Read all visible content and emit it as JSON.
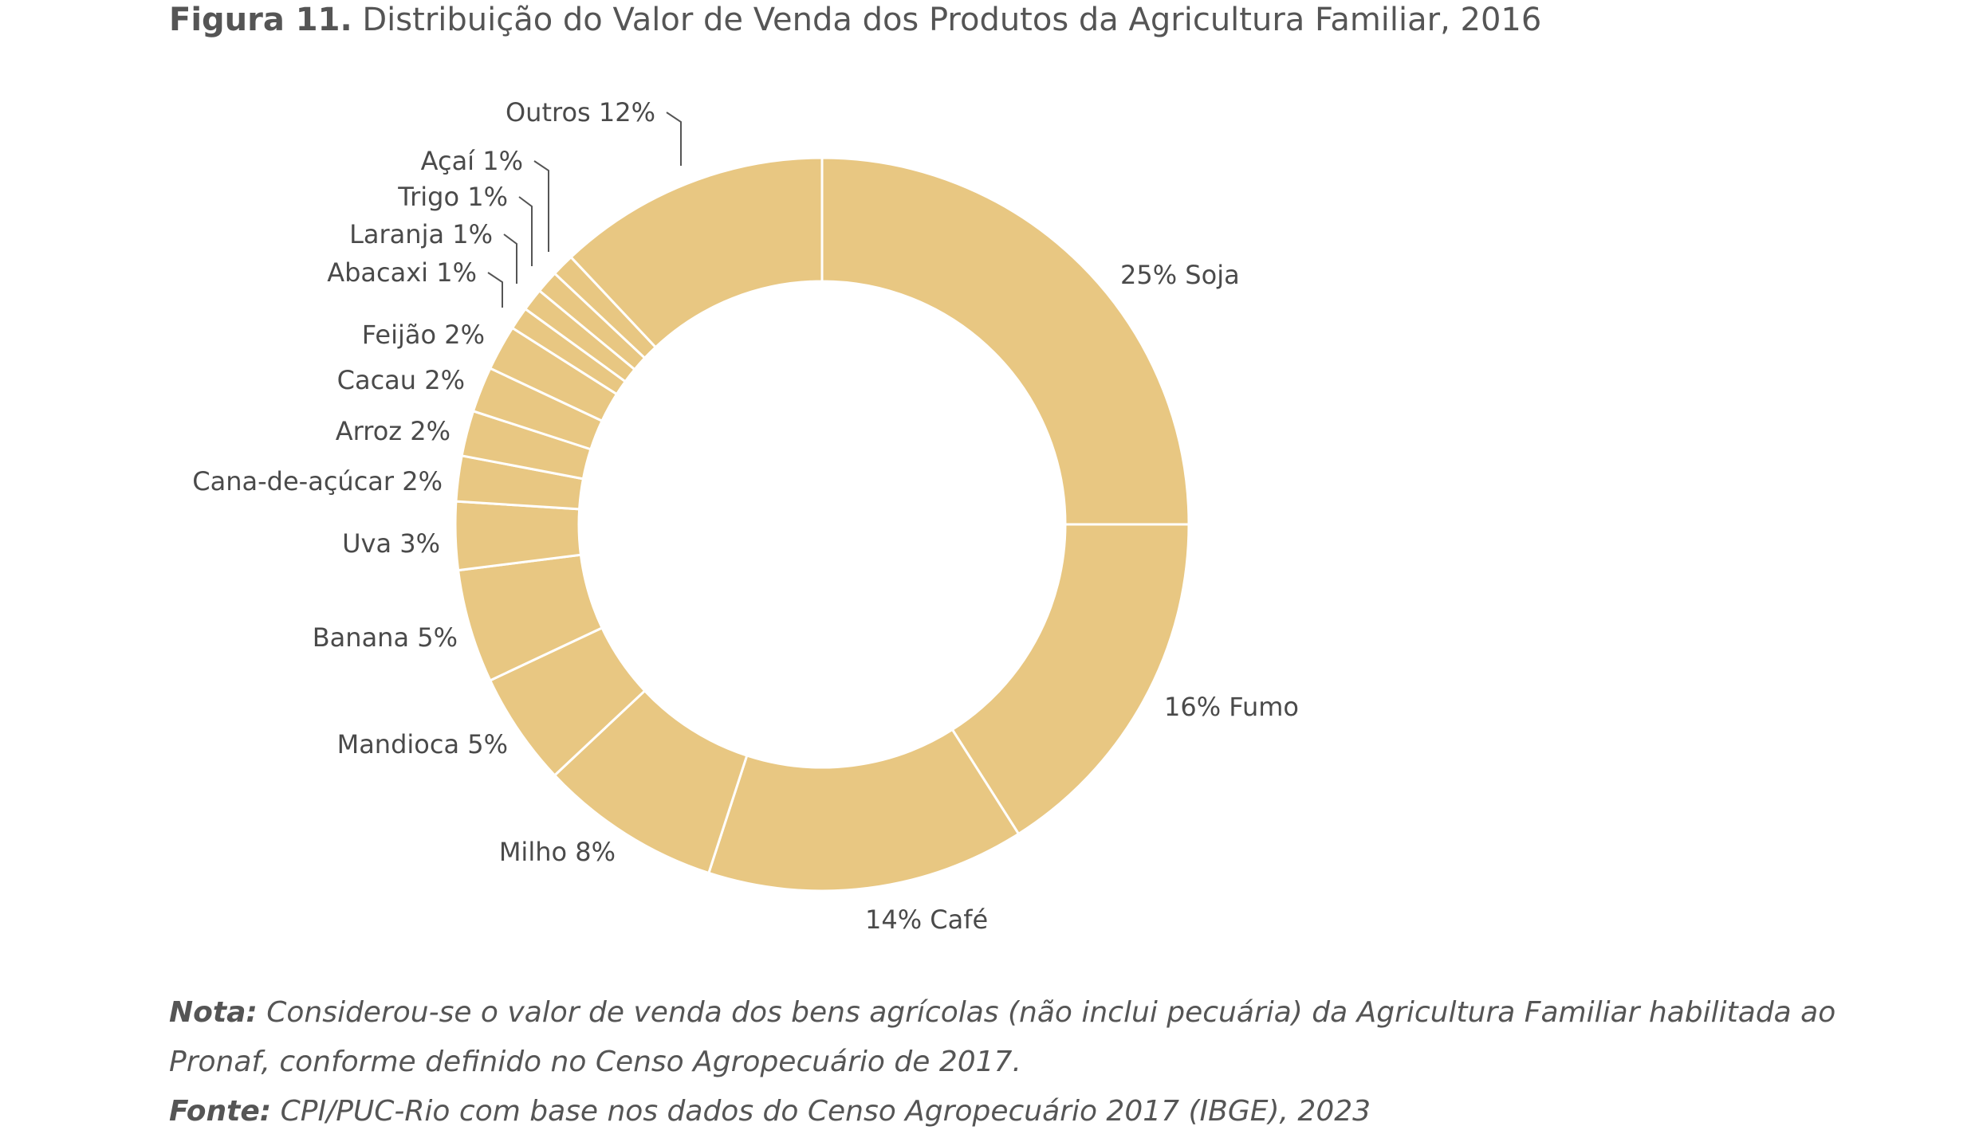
{
  "figure": {
    "label": "Figura 11.",
    "title": "Distribuição do Valor de Venda dos Produtos da Agricultura Familiar, 2016"
  },
  "chart_data": {
    "type": "pie",
    "variant": "donut",
    "color": "#E8C782",
    "slice_border_color": "#FFFFFF",
    "start": "top, clockwise",
    "slices": [
      {
        "name": "Soja",
        "value": 25,
        "label": "25% Soja"
      },
      {
        "name": "Fumo",
        "value": 16,
        "label": "16% Fumo"
      },
      {
        "name": "Café",
        "value": 14,
        "label": "14% Café"
      },
      {
        "name": "Milho",
        "value": 8,
        "label": "Milho 8%"
      },
      {
        "name": "Mandioca",
        "value": 5,
        "label": "Mandioca 5%"
      },
      {
        "name": "Banana",
        "value": 5,
        "label": "Banana 5%"
      },
      {
        "name": "Uva",
        "value": 3,
        "label": "Uva 3%"
      },
      {
        "name": "Cana-de-açúcar",
        "value": 2,
        "label": "Cana-de-açúcar 2%"
      },
      {
        "name": "Arroz",
        "value": 2,
        "label": "Arroz 2%"
      },
      {
        "name": "Cacau",
        "value": 2,
        "label": "Cacau 2%"
      },
      {
        "name": "Feijão",
        "value": 2,
        "label": "Feijão 2%"
      },
      {
        "name": "Abacaxi",
        "value": 1,
        "label": "Abacaxi 1%"
      },
      {
        "name": "Laranja",
        "value": 1,
        "label": "Laranja 1%"
      },
      {
        "name": "Trigo",
        "value": 1,
        "label": "Trigo 1%"
      },
      {
        "name": "Açaí",
        "value": 1,
        "label": "Açaí 1%"
      },
      {
        "name": "Outros",
        "value": 12,
        "label": "Outros 12%"
      }
    ]
  },
  "notes": {
    "nota_label": "Nota:",
    "nota_line1": "Considerou-se o valor de venda dos bens agrícolas (não inclui pecuária) da Agricultura Familiar habilitada ao",
    "nota_line2": "Pronaf, conforme definido no Censo Agropecuário de 2017.",
    "fonte_label": "Fonte:",
    "fonte_text": "CPI/PUC-Rio com base nos dados do Censo Agropecuário 2017 (IBGE), 2023"
  }
}
